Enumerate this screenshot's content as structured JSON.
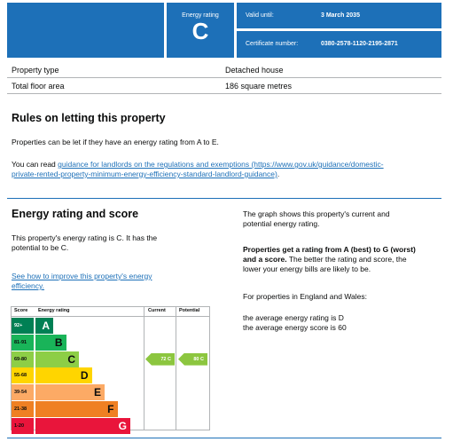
{
  "header": {
    "rating_label": "Energy rating",
    "rating_letter": "C",
    "valid_label": "Valid until:",
    "valid_value": "3 March 2035",
    "cert_label": "Certificate number:",
    "cert_value": "0380-2578-1120-2195-2871"
  },
  "property": [
    {
      "key": "Property type",
      "value": "Detached house"
    },
    {
      "key": "Total floor area",
      "value": "186 square metres"
    }
  ],
  "letting": {
    "title": "Rules on letting this property",
    "p1": "Properties can be let if they have an energy rating from A to E.",
    "p2_prefix": "You can read ",
    "p2_link_line1": "guidance for landlords on the regulations and exemptions (https://www.gov.uk/guidance/domestic-",
    "p2_link_line2": "private-rented-property-minimum-energy-efficiency-standard-landlord-guidance)",
    "p2_suffix": "."
  },
  "energy": {
    "title": "Energy rating and score",
    "p1_line1": "This property's energy rating is C. It has the",
    "p1_line2": "potential to be C.",
    "link_line1": "See how to improve this property's energy",
    "link_line2": "efficiency.",
    "right_p1_line1": "The graph shows this property's current and",
    "right_p1_line2": "potential energy rating.",
    "right_p2_bold_line1": "Properties get a rating from A (best) to G (worst)",
    "right_p2_bold_line2": "and a score.",
    "right_p2_rest_line1": " The better the rating and score, the",
    "right_p2_line3": "lower your energy bills are likely to be.",
    "right_p3": "For properties in England and Wales:",
    "right_p4_line1": "the average energy rating is D",
    "right_p4_line2": "the average energy score is 60"
  },
  "chart": {
    "col_score": "Score",
    "col_rating": "Energy rating",
    "col_current": "Current",
    "col_potential": "Potential",
    "bands": [
      {
        "score": "92+",
        "letter": "A",
        "color": "#008054"
      },
      {
        "score": "81-91",
        "letter": "B",
        "color": "#19b459"
      },
      {
        "score": "69-80",
        "letter": "C",
        "color": "#8dce46"
      },
      {
        "score": "55-68",
        "letter": "D",
        "color": "#ffd500"
      },
      {
        "score": "39-54",
        "letter": "E",
        "color": "#fcaa65"
      },
      {
        "score": "21-38",
        "letter": "F",
        "color": "#ef8023"
      },
      {
        "score": "1-20",
        "letter": "G",
        "color": "#e9153b"
      }
    ],
    "current": {
      "label": "72 C",
      "value": 72,
      "band": "C"
    },
    "potential": {
      "label": "80 C",
      "value": 80,
      "band": "C"
    }
  }
}
